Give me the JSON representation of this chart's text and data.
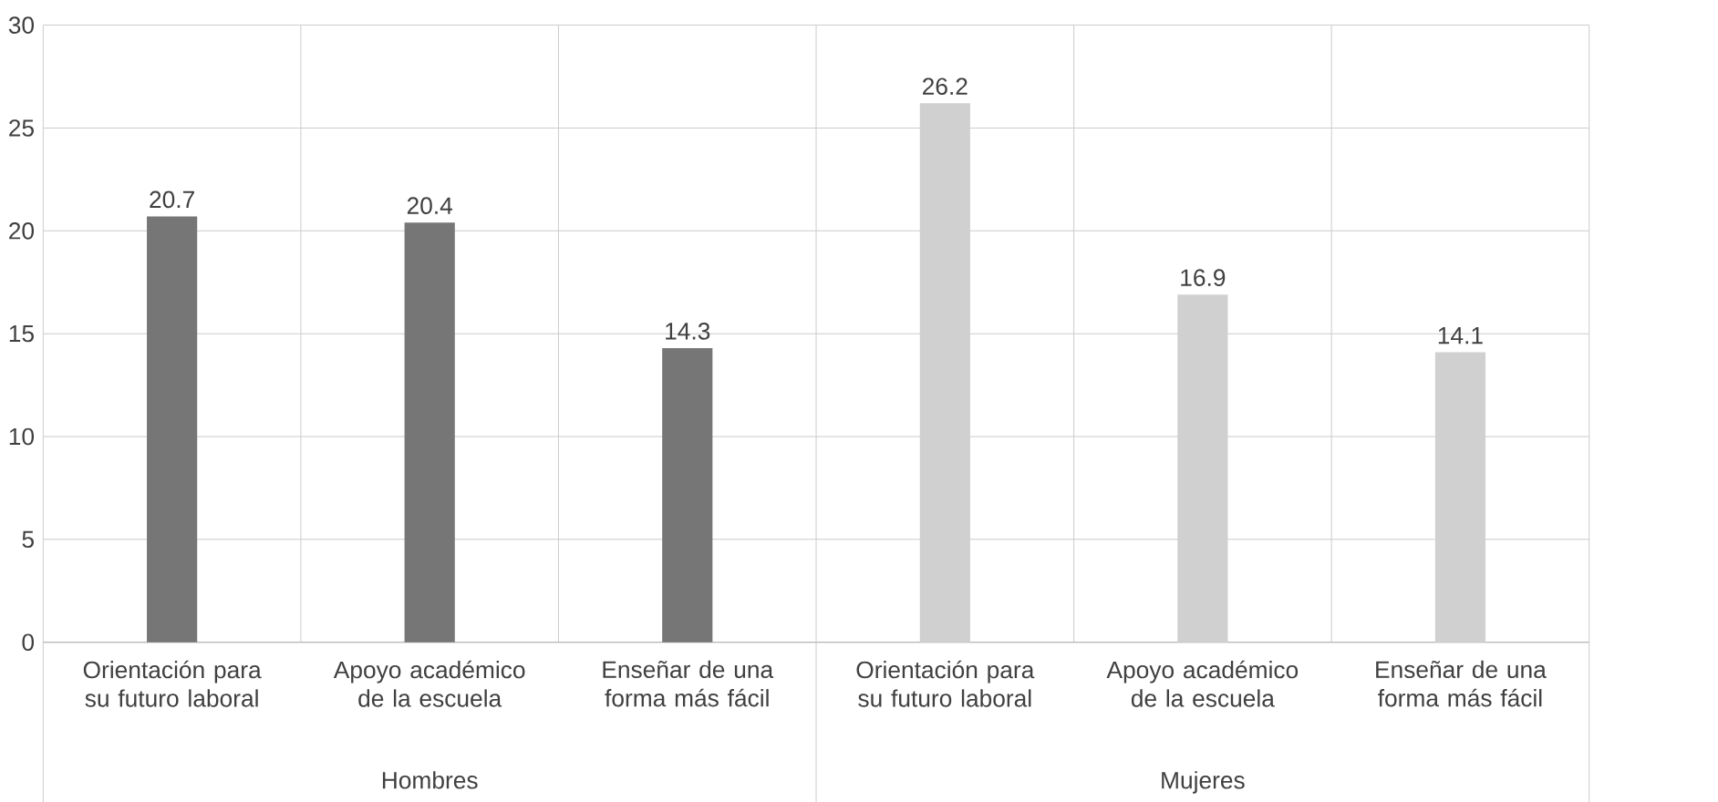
{
  "chart_data": {
    "type": "bar",
    "categories": [
      "Orientación para su futuro laboral",
      "Apoyo académico de la escuela",
      "Enseñar de una forma más fácil",
      "Orientación para su futuro laboral",
      "Apoyo académico de la escuela",
      "Enseñar de una forma más fácil"
    ],
    "values": [
      20.7,
      20.4,
      14.3,
      26.2,
      16.9,
      14.1
    ],
    "colors": [
      "#767676",
      "#767676",
      "#767676",
      "#d0d0d0",
      "#d0d0d0",
      "#d0d0d0"
    ],
    "ylim": [
      0,
      30
    ],
    "yticks": [
      0,
      5,
      10,
      15,
      20,
      25,
      30
    ],
    "grid": "y",
    "data_labels": true,
    "annotations": [
      "Hombres",
      "Mujeres"
    ]
  }
}
